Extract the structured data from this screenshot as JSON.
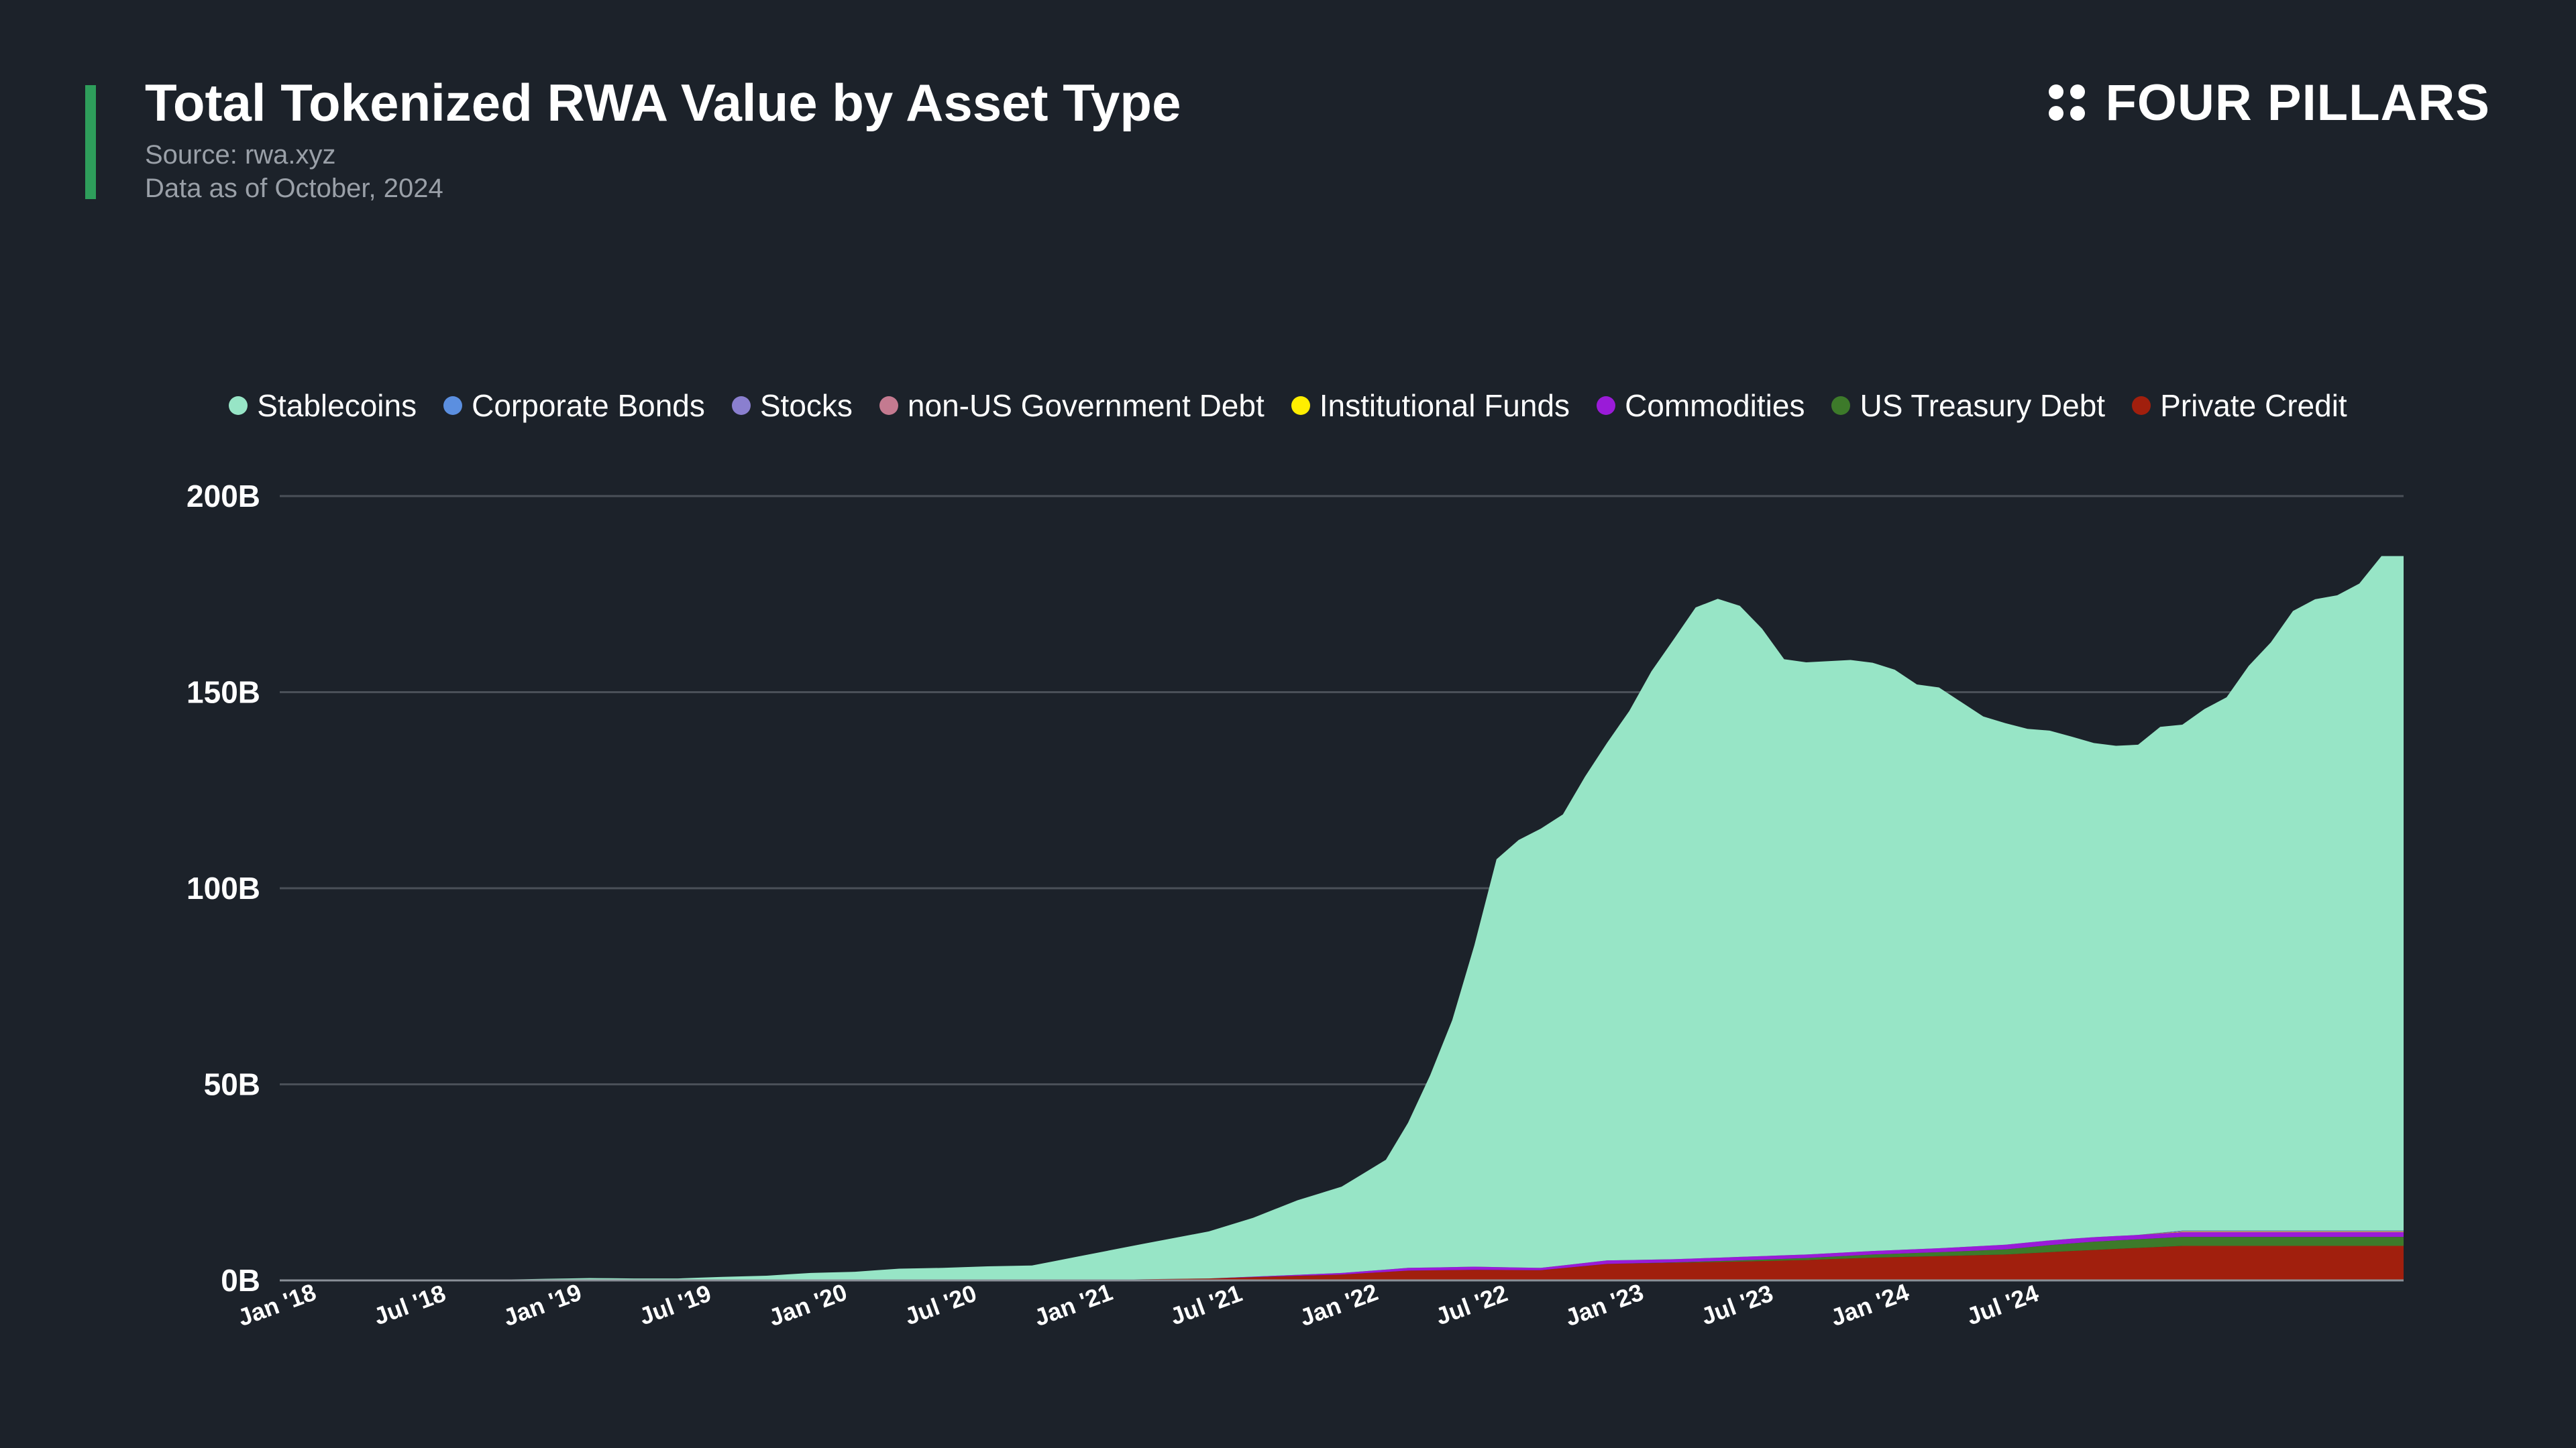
{
  "header": {
    "title": "Total Tokenized RWA Value by Asset Type",
    "source": "Source: rwa.xyz",
    "asof": "Data as of October, 2024",
    "accent_color": "#2e9e5b"
  },
  "brand": {
    "name": "FOUR PILLARS",
    "icon": "four-dots-icon"
  },
  "chart_data": {
    "type": "area",
    "stacked": true,
    "title": "Total Tokenized RWA Value by Asset Type",
    "xlabel": "",
    "ylabel": "",
    "ylim": [
      0,
      200
    ],
    "y_unit": "B",
    "y_ticks": [
      "0B",
      "50B",
      "100B",
      "150B",
      "200B"
    ],
    "y_tick_values": [
      0,
      50,
      100,
      150,
      200
    ],
    "grid": true,
    "legend_position": "top",
    "x_start": "Jan '18",
    "x_end": "Oct '24",
    "x_ticks": [
      "Jan '18",
      "Jul '18",
      "Jan '19",
      "Jul '19",
      "Jan '20",
      "Jul '20",
      "Jan '21",
      "Jul '21",
      "Jan '22",
      "Jul '22",
      "Jan '23",
      "Jul '23",
      "Jan '24",
      "Jul '24"
    ],
    "series": [
      {
        "name": "Private Credit",
        "color": "#a11f0d",
        "values": [
          [
            0,
            0
          ],
          [
            36,
            0
          ],
          [
            39,
            0.3
          ],
          [
            42,
            0.5
          ],
          [
            45,
            1
          ],
          [
            48,
            1.5
          ],
          [
            51,
            2.5
          ],
          [
            54,
            2.7
          ],
          [
            57,
            2.6
          ],
          [
            60,
            4.2
          ],
          [
            63,
            4.5
          ],
          [
            66,
            4.8
          ],
          [
            69,
            5.2
          ],
          [
            72,
            5.8
          ],
          [
            75,
            6.2
          ],
          [
            78,
            6.6
          ],
          [
            81,
            7.5
          ],
          [
            84,
            8.3
          ],
          [
            86,
            8.8
          ]
        ]
      },
      {
        "name": "US Treasury Debt",
        "color": "#3d7a2a",
        "values": [
          [
            0,
            0
          ],
          [
            60,
            0
          ],
          [
            63,
            0.1
          ],
          [
            66,
            0.3
          ],
          [
            69,
            0.5
          ],
          [
            72,
            0.8
          ],
          [
            75,
            1
          ],
          [
            78,
            1.3
          ],
          [
            80,
            1.8
          ],
          [
            82,
            2.1
          ],
          [
            84,
            2.2
          ],
          [
            86,
            2.3
          ]
        ]
      },
      {
        "name": "Commodities",
        "color": "#9a1bd8",
        "values": [
          [
            0,
            0
          ],
          [
            42,
            0
          ],
          [
            45,
            0.2
          ],
          [
            48,
            0.4
          ],
          [
            51,
            0.7
          ],
          [
            54,
            0.8
          ],
          [
            57,
            0.6
          ],
          [
            60,
            0.9
          ],
          [
            63,
            0.8
          ],
          [
            66,
            0.9
          ],
          [
            69,
            0.9
          ],
          [
            72,
            0.9
          ],
          [
            75,
            1
          ],
          [
            78,
            1.2
          ],
          [
            81,
            1.2
          ],
          [
            84,
            1.1
          ],
          [
            86,
            1.2
          ]
        ]
      },
      {
        "name": "Institutional Funds",
        "color": "#ffee00",
        "values": [
          [
            0,
            0
          ],
          [
            84,
            0
          ],
          [
            86,
            0.1
          ]
        ]
      },
      {
        "name": "non-US Government Debt",
        "color": "#c47a90",
        "values": [
          [
            0,
            0
          ],
          [
            84,
            0
          ],
          [
            86,
            0.1
          ]
        ]
      },
      {
        "name": "Stocks",
        "color": "#8a7fcf",
        "values": [
          [
            0,
            0
          ],
          [
            84,
            0
          ],
          [
            86,
            0.1
          ]
        ]
      },
      {
        "name": "Corporate Bonds",
        "color": "#5b8fe0",
        "values": [
          [
            0,
            0
          ],
          [
            84,
            0
          ],
          [
            86,
            0.1
          ]
        ]
      },
      {
        "name": "Stablecoins",
        "color": "#97e5c6",
        "values": [
          [
            0,
            0
          ],
          [
            6,
            0.1
          ],
          [
            10,
            0.2
          ],
          [
            12,
            0.4
          ],
          [
            14,
            0.6
          ],
          [
            16,
            0.5
          ],
          [
            18,
            0.5
          ],
          [
            20,
            0.9
          ],
          [
            22,
            1.2
          ],
          [
            24,
            1.9
          ],
          [
            26,
            2.2
          ],
          [
            28,
            3
          ],
          [
            30,
            3.2
          ],
          [
            32,
            3.6
          ],
          [
            34,
            3.8
          ],
          [
            36,
            6
          ],
          [
            38,
            8
          ],
          [
            40,
            10
          ],
          [
            42,
            12
          ],
          [
            44,
            15
          ],
          [
            46,
            19
          ],
          [
            48,
            22
          ],
          [
            50,
            28
          ],
          [
            51,
            37
          ],
          [
            52,
            49
          ],
          [
            53,
            63
          ],
          [
            54,
            82
          ],
          [
            55,
            104
          ],
          [
            56,
            109
          ],
          [
            57,
            112
          ],
          [
            58,
            115
          ],
          [
            59,
            124
          ],
          [
            60,
            132
          ],
          [
            61,
            140
          ],
          [
            62,
            150
          ],
          [
            63,
            158
          ],
          [
            64,
            166
          ],
          [
            65,
            168
          ],
          [
            66,
            166
          ],
          [
            67,
            160
          ],
          [
            68,
            152
          ],
          [
            69,
            151
          ],
          [
            70,
            151
          ],
          [
            71,
            151
          ],
          [
            72,
            150
          ],
          [
            73,
            148
          ],
          [
            74,
            144
          ],
          [
            75,
            143
          ],
          [
            76,
            139
          ],
          [
            77,
            135
          ],
          [
            78,
            133
          ],
          [
            79,
            131
          ],
          [
            80,
            130
          ],
          [
            81,
            128
          ],
          [
            82,
            126
          ],
          [
            83,
            125
          ],
          [
            84,
            125
          ],
          [
            85,
            129
          ],
          [
            86,
            129
          ],
          [
            87,
            133
          ],
          [
            88,
            136
          ],
          [
            89,
            144
          ],
          [
            90,
            150
          ],
          [
            91,
            158
          ],
          [
            92,
            161
          ],
          [
            93,
            162
          ],
          [
            94,
            165
          ],
          [
            95,
            172
          ],
          [
            96,
            172
          ]
        ]
      }
    ]
  }
}
